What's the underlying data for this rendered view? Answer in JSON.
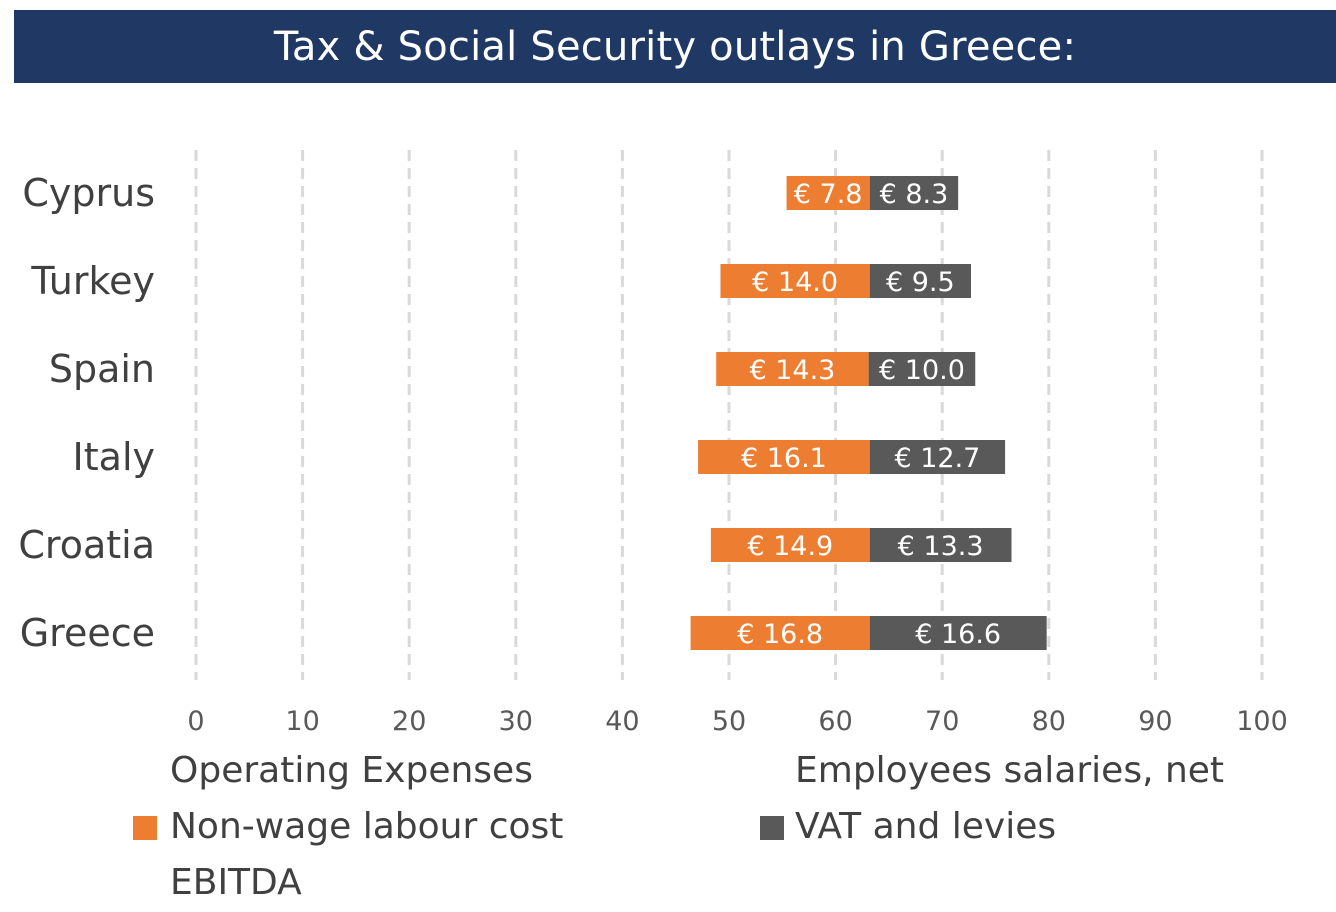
{
  "title": "Tax & Social Security outlays in Greece:",
  "colors": {
    "title_bg": "#1f3864",
    "non_wage": "#ed7d31",
    "vat": "#595959",
    "grid": "#d9d9d9"
  },
  "legend": {
    "operating_expenses": "Operating Expenses",
    "employees_salaries": "Employees salaries, net",
    "non_wage": "Non-wage labour cost",
    "vat": "VAT and levies",
    "ebitda": "EBITDA"
  },
  "chart_data": {
    "type": "bar",
    "orientation": "horizontal",
    "stacked": true,
    "title": "Tax & Social Security outlays in Greece:",
    "categories": [
      "Cyprus",
      "Turkey",
      "Spain",
      "Italy",
      "Croatia",
      "Greece"
    ],
    "xlim": [
      0,
      100
    ],
    "xticks": [
      0,
      10,
      20,
      30,
      40,
      50,
      60,
      70,
      80,
      90,
      100
    ],
    "grid": true,
    "legend_position": "bottom",
    "series": [
      {
        "name": "Operating Expenses",
        "values": [
          55.4,
          49.2,
          48.8,
          47.1,
          48.3,
          46.4
        ],
        "visible": false
      },
      {
        "name": "Non-wage labour cost",
        "values": [
          7.8,
          14.0,
          14.3,
          16.1,
          14.9,
          16.8
        ],
        "labels": [
          "€ 7.8",
          "€ 14.0",
          "€ 14.3",
          "€ 16.1",
          "€ 14.9",
          "€ 16.8"
        ]
      },
      {
        "name": "VAT and levies",
        "values": [
          8.3,
          9.5,
          10.0,
          12.7,
          13.3,
          16.6
        ],
        "labels": [
          "€ 8.3",
          "€ 9.5",
          "€ 10.0",
          "€ 12.7",
          "€ 13.3",
          "€ 16.6"
        ]
      }
    ]
  }
}
